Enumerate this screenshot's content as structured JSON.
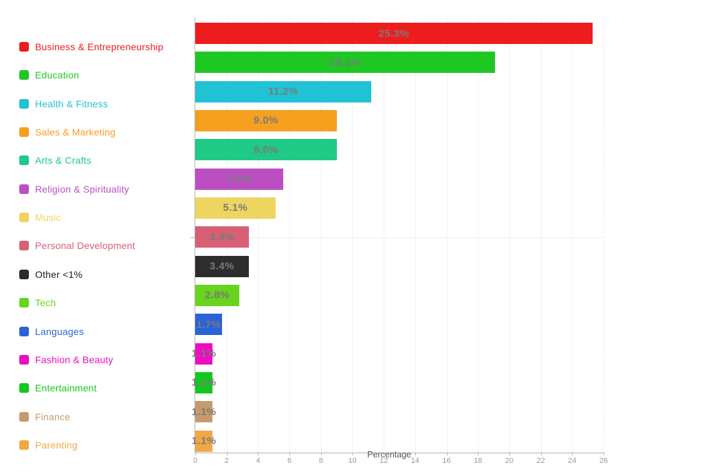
{
  "chart_data": {
    "type": "bar",
    "orientation": "horizontal",
    "title": "",
    "xlabel": "Percentage",
    "ylabel": "",
    "xlim": [
      0,
      26
    ],
    "x_ticks": [
      0,
      2,
      4,
      6,
      8,
      10,
      12,
      14,
      16,
      18,
      20,
      22,
      24,
      26
    ],
    "grid": "vertical-dotted",
    "legend_position": "left",
    "categories": [
      "Business & Entrepreneurship",
      "Education",
      "Health & Fitness",
      "Sales & Marketing",
      "Arts & Crafts",
      "Religion & Spirituality",
      "Music",
      "Personal Development",
      "Other <1%",
      "Tech",
      "Languages",
      "Fashion & Beauty",
      "Entertainment",
      "Finance",
      "Parenting"
    ],
    "values": [
      25.3,
      19.1,
      11.2,
      9.0,
      9.0,
      5.6,
      5.1,
      3.4,
      3.4,
      2.8,
      1.7,
      1.1,
      1.1,
      1.1,
      1.1
    ],
    "bar_labels": [
      "25.3%",
      "19.1%",
      "11.2%",
      "9.0%",
      "9.0%",
      "5.6%",
      "5.1%",
      "3.4%",
      "3.4%",
      "2.8%",
      "1.7%",
      "1.1%",
      "1.1%",
      "1.1%",
      "1.1%"
    ],
    "colors": [
      "#ee1d1d",
      "#1fc722",
      "#20c2d3",
      "#f6a01f",
      "#1fc986",
      "#bc4ec3",
      "#eed55f",
      "#d85f74",
      "#2d2d2d",
      "#67d41d",
      "#2a63d8",
      "#ef0cc1",
      "#12c81f",
      "#c59b6e",
      "#f1a844"
    ],
    "bar_label_color": "#7a7a7a",
    "axis_color": "#b3b3b3",
    "tick_label_color": "#9a9a9a",
    "grid_color": "#e4e4e4"
  }
}
